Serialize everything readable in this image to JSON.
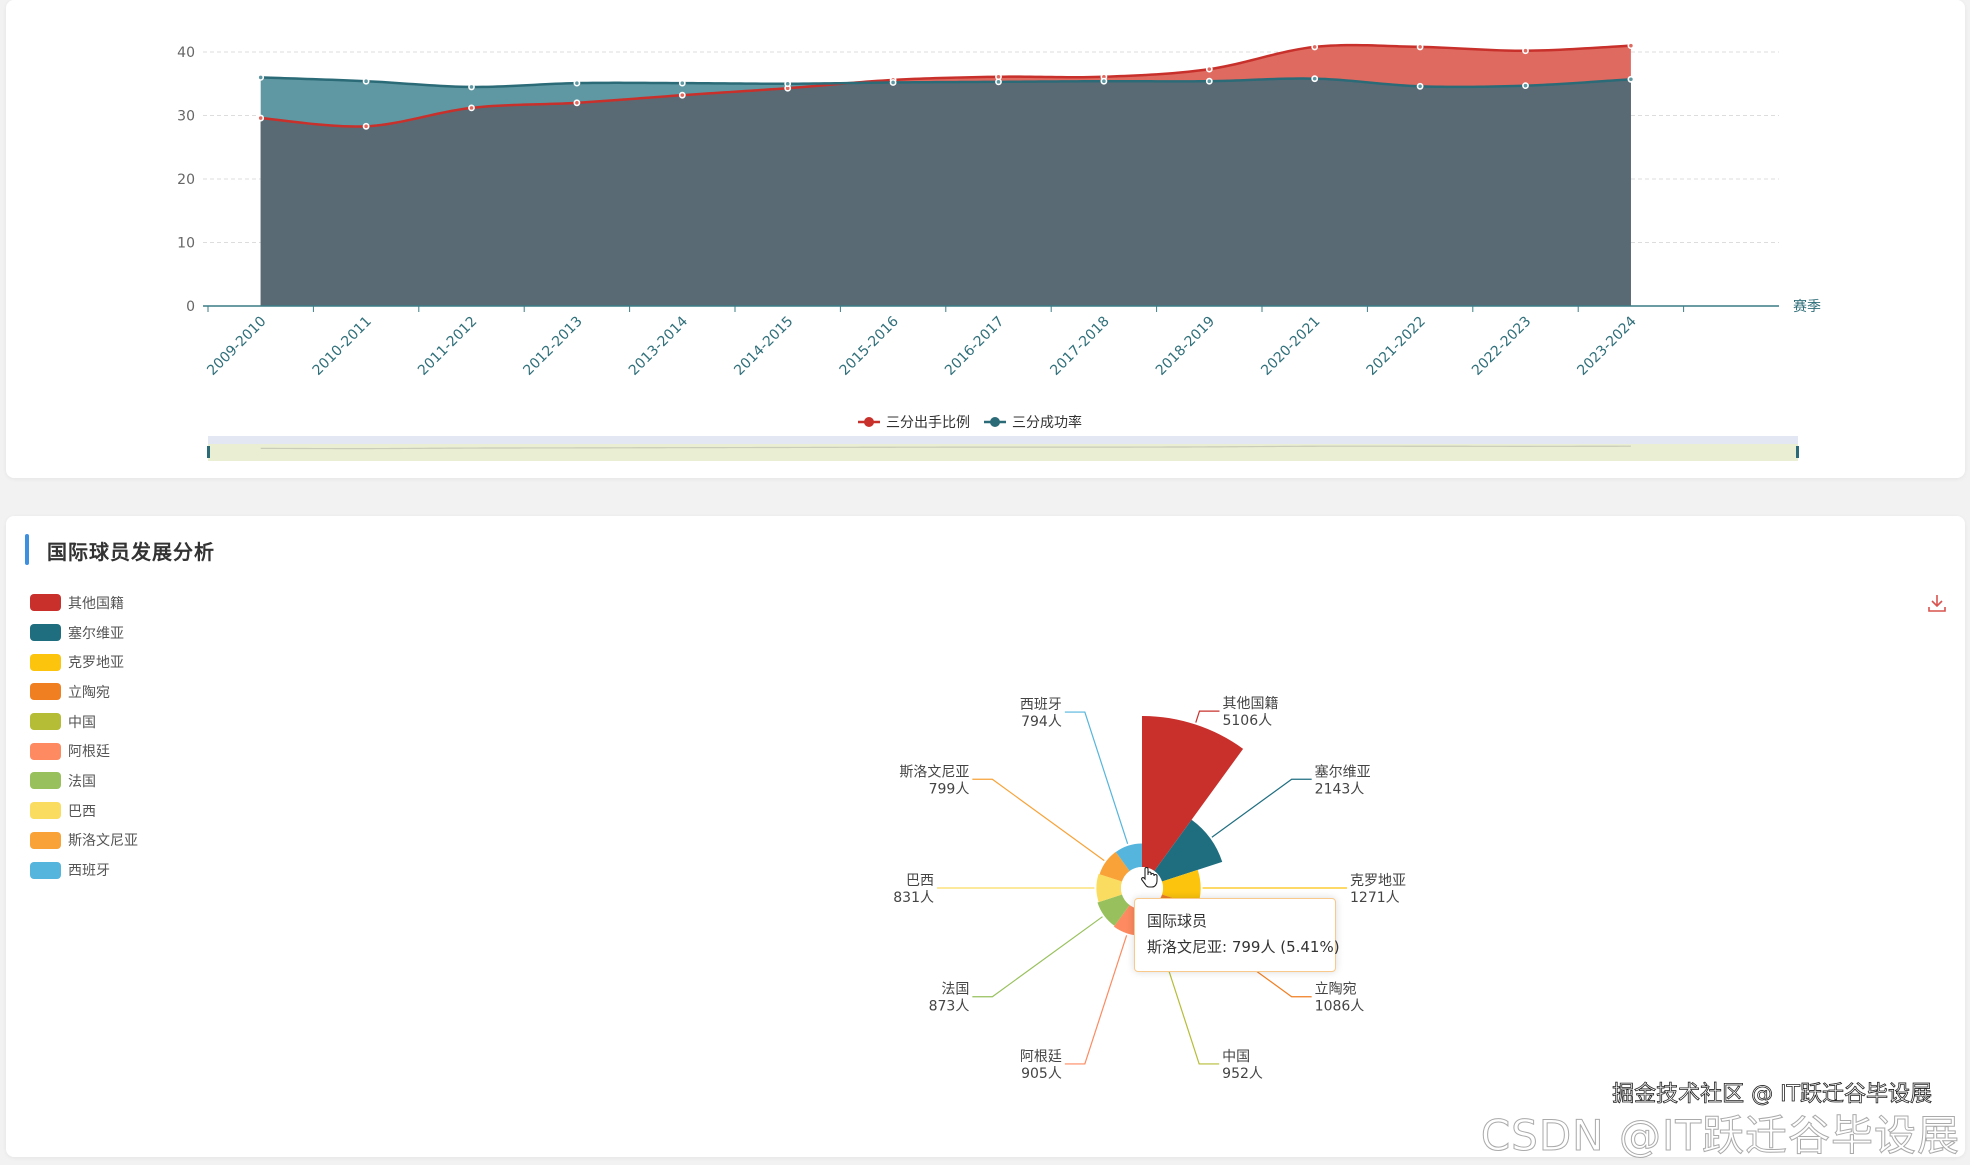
{
  "chart_data": [
    {
      "type": "area",
      "title": "",
      "xlabel": "赛季",
      "ylabel": "",
      "ylim": [
        0,
        40
      ],
      "yticks": [
        0,
        10,
        20,
        30,
        40
      ],
      "grid": true,
      "legend": "bottom",
      "categories": [
        "2009-2010",
        "2010-2011",
        "2011-2012",
        "2012-2013",
        "2013-2014",
        "2014-2015",
        "2015-2016",
        "2016-2017",
        "2017-2018",
        "2018-2019",
        "2020-2021",
        "2021-2022",
        "2022-2023",
        "2023-2024"
      ],
      "series": [
        {
          "name": "三分出手比例",
          "color": "#c8302b",
          "fill": "#df6a60",
          "values": [
            29.6,
            28.3,
            31.2,
            32.0,
            33.2,
            34.3,
            35.6,
            36.1,
            36.1,
            37.3,
            40.8,
            40.8,
            40.2,
            41.0
          ]
        },
        {
          "name": "三分成功率",
          "color": "#2b6b77",
          "fill": "#5f98a2",
          "values": [
            36.0,
            35.4,
            34.5,
            35.1,
            35.1,
            35.0,
            35.2,
            35.3,
            35.4,
            35.4,
            35.8,
            34.6,
            34.7,
            35.7
          ]
        }
      ],
      "overlap_color": "#5a6a75",
      "data_zoom": {
        "start_percent": 0,
        "end_percent": 100
      }
    },
    {
      "type": "pie",
      "rose": "area",
      "title": "国际球员发展分析",
      "series_name": "国际球员",
      "unit": "人",
      "legend": "left",
      "slices": [
        {
          "name": "其他国籍",
          "value": 5106,
          "color": "#c9302c"
        },
        {
          "name": "塞尔维亚",
          "value": 2143,
          "color": "#1f6e80"
        },
        {
          "name": "克罗地亚",
          "value": 1271,
          "color": "#fcc40d"
        },
        {
          "name": "立陶宛",
          "value": 1086,
          "color": "#f07f22"
        },
        {
          "name": "中国",
          "value": 952,
          "color": "#b5bd36"
        },
        {
          "name": "阿根廷",
          "value": 905,
          "color": "#fd8a60"
        },
        {
          "name": "法国",
          "value": 873,
          "color": "#98c15d"
        },
        {
          "name": "巴西",
          "value": 831,
          "color": "#fadc60"
        },
        {
          "name": "斯洛文尼亚",
          "value": 799,
          "color": "#f8a238"
        },
        {
          "name": "西班牙",
          "value": 794,
          "color": "#55b5dd"
        }
      ],
      "tooltip": {
        "title": "国际球员",
        "text": "斯洛文尼亚: 799人 (5.41%)"
      }
    }
  ],
  "toolbox": {
    "download_icon": "download-icon",
    "color": "#d9534f"
  },
  "watermark": {
    "front": "掘金技术社区 @ IT跃迁谷毕设展",
    "back": "CSDN @IT跃迁谷毕设展"
  },
  "accent": "#3d8fe0"
}
